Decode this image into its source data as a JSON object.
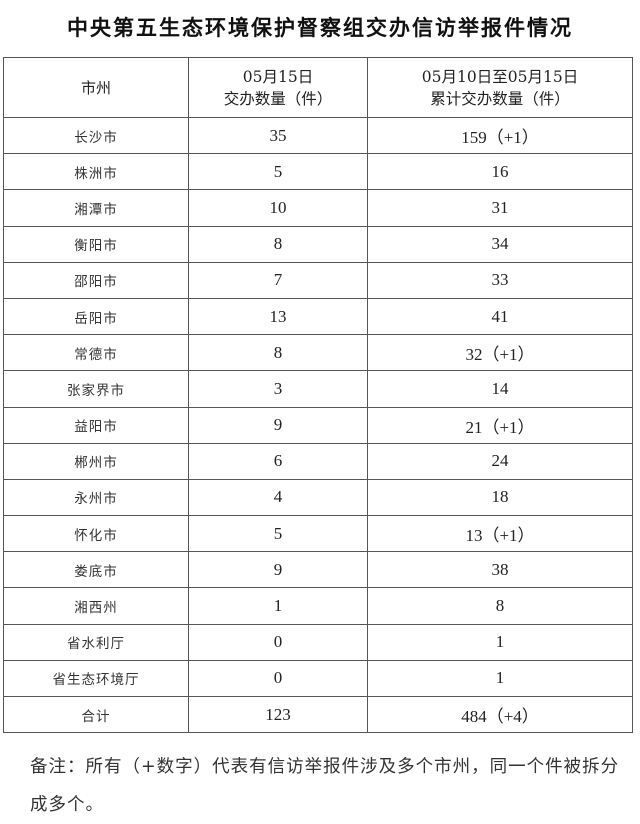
{
  "title": "中央第五生态环境保护督察组交办信访举报件情况",
  "table": {
    "headers": [
      {
        "line1": "市州",
        "line2": ""
      },
      {
        "line1": "05月15日",
        "line2": "交办数量（件）"
      },
      {
        "line1": "05月10日至05月15日",
        "line2": "累计交办数量（件）"
      }
    ],
    "rows": [
      [
        "长沙市",
        "35",
        "159（+1）"
      ],
      [
        "株洲市",
        "5",
        "16"
      ],
      [
        "湘潭市",
        "10",
        "31"
      ],
      [
        "衡阳市",
        "8",
        "34"
      ],
      [
        "邵阳市",
        "7",
        "33"
      ],
      [
        "岳阳市",
        "13",
        "41"
      ],
      [
        "常德市",
        "8",
        "32（+1）"
      ],
      [
        "张家界市",
        "3",
        "14"
      ],
      [
        "益阳市",
        "9",
        "21（+1）"
      ],
      [
        "郴州市",
        "6",
        "24"
      ],
      [
        "永州市",
        "4",
        "18"
      ],
      [
        "怀化市",
        "5",
        "13（+1）"
      ],
      [
        "娄底市",
        "9",
        "38"
      ],
      [
        "湘西州",
        "1",
        "8"
      ],
      [
        "省水利厅",
        "0",
        "1"
      ],
      [
        "省生态环境厅",
        "0",
        "1"
      ],
      [
        "合计",
        "123",
        "484（+4）"
      ]
    ]
  },
  "note": "备注：所有（+数字）代表有信访举报件涉及多个市州，同一个件被拆分成多个。"
}
